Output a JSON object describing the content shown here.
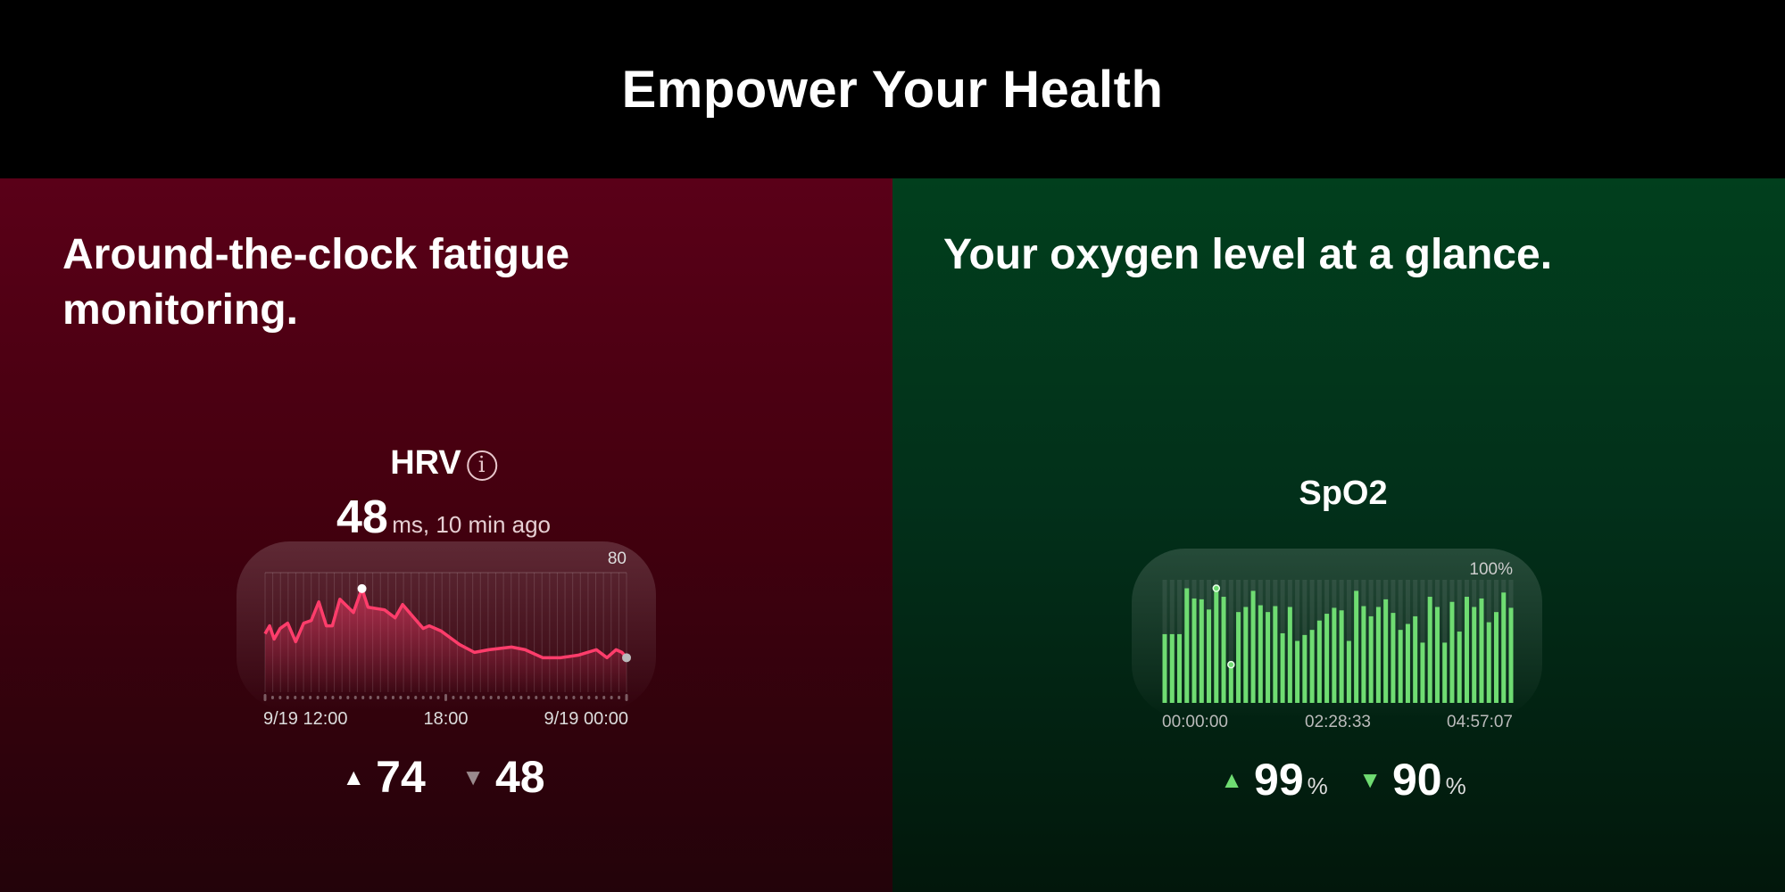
{
  "header": {
    "title": "Empower Your Health"
  },
  "left": {
    "heading_line1": "Around-the-clock fatigue",
    "heading_line2": "monitoring.",
    "colors": {
      "bg_top": "#5a0018",
      "line": "#ff3d6b"
    },
    "metric": {
      "title": "HRV",
      "info_icon": "info-icon",
      "value": "48",
      "suffix": "ms, 10 min ago"
    },
    "stats": {
      "max": "74",
      "min": "48",
      "max_icon": "triangle-up-icon",
      "min_icon": "triangle-down-icon"
    }
  },
  "right": {
    "heading": "Your oxygen level at a glance.",
    "colors": {
      "bg_top": "#013f1d",
      "bar": "#6fdc72"
    },
    "metric": {
      "title": "SpO2"
    },
    "stats": {
      "max": "99",
      "min": "90",
      "unit": "%",
      "max_icon": "triangle-up-icon",
      "min_icon": "triangle-down-icon"
    }
  },
  "chart_data": [
    {
      "type": "line",
      "title": "HRV",
      "y_max_label": "80",
      "ylim": [
        33,
        80
      ],
      "x_tick_labels": [
        "9/19 12:00",
        "18:00",
        "9/19 00:00"
      ],
      "x": [
        "12:00",
        "12:09",
        "12:18",
        "12:30",
        "12:45",
        "13:01",
        "13:17",
        "13:32",
        "13:47",
        "14:02",
        "14:14",
        "14:29",
        "14:56",
        "15:13",
        "15:25",
        "15:58",
        "16:19",
        "16:34",
        "16:52",
        "17:15",
        "17:27",
        "17:51",
        "18:27",
        "18:57",
        "19:26",
        "20:11",
        "20:38",
        "21:13",
        "21:49",
        "22:25",
        "23:00",
        "23:21",
        "23:39",
        "23:51",
        "00:00"
      ],
      "values": [
        57,
        60,
        55,
        59,
        61,
        54,
        61,
        62,
        69,
        60,
        60,
        70,
        65,
        74,
        67,
        66,
        63,
        68,
        64,
        59,
        60,
        58,
        53,
        50,
        51,
        52,
        51,
        48,
        48,
        49,
        51,
        48,
        51,
        50,
        48
      ],
      "highlight": {
        "max_index": 13,
        "last_index": 34
      }
    },
    {
      "type": "bar",
      "title": "SpO2",
      "y_max_label": "100%",
      "ylim": [
        85.5,
        100
      ],
      "x_tick_labels": [
        "00:00:00",
        "02:28:33",
        "04:57:07"
      ],
      "values": [
        93.6,
        93.6,
        93.6,
        99,
        97.8,
        97.7,
        96.5,
        99,
        98,
        90,
        96.2,
        96.8,
        98.7,
        97,
        96.2,
        96.9,
        93.7,
        96.8,
        92.8,
        93.5,
        94.1,
        95.2,
        96,
        96.7,
        96.4,
        92.8,
        98.7,
        96.9,
        95.7,
        96.8,
        97.7,
        96.1,
        94.1,
        94.8,
        95.7,
        92.6,
        98,
        96.8,
        92.6,
        97.4,
        93.9,
        98,
        96.8,
        97.8,
        95,
        96.2,
        98.5,
        96.7
      ],
      "highlight": {
        "max_index": 7,
        "min_index": 9
      }
    }
  ]
}
